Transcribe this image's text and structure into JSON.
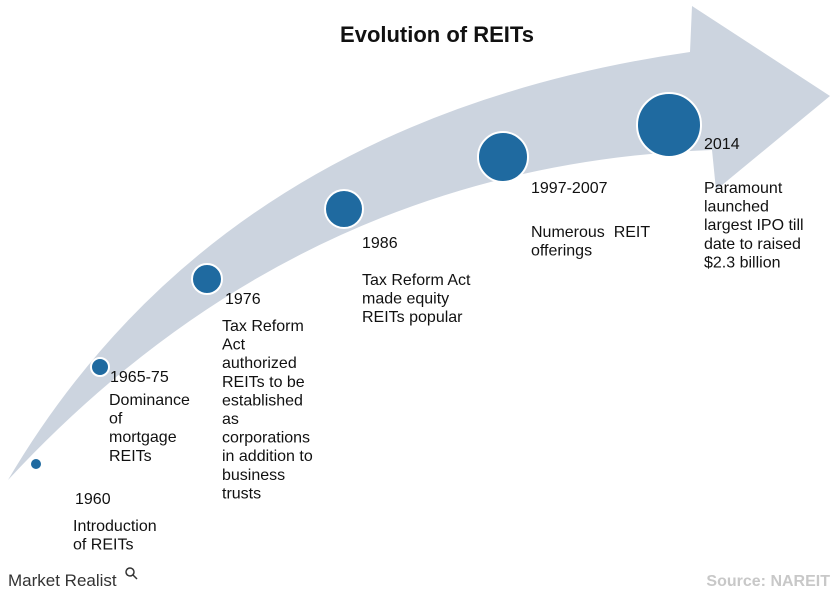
{
  "title": "Evolution of REITs",
  "milestones": [
    {
      "year": "1960",
      "lines": [
        "Introduction",
        "of REITs"
      ]
    },
    {
      "year": "1965-75",
      "lines": [
        "Dominance",
        "of",
        "mortgage",
        "REITs"
      ]
    },
    {
      "year": "1976",
      "lines": [
        "Tax Reform",
        "Act",
        "authorized",
        "REITs to be",
        "established",
        "as",
        "corporations",
        "in addition to",
        "business",
        "trusts"
      ]
    },
    {
      "year": "1986",
      "lines": [
        "Tax Reform Act",
        "made equity",
        "REITs popular"
      ]
    },
    {
      "year": "1997-2007",
      "lines": [
        "Numerous  REIT",
        "offerings"
      ]
    },
    {
      "year": "2014",
      "lines": [
        "Paramount",
        "launched",
        "largest IPO till",
        "date to raised",
        "$2.3 billion"
      ]
    }
  ],
  "footer": {
    "brand": "Market Realist",
    "source": "Source: NAREIT"
  }
}
